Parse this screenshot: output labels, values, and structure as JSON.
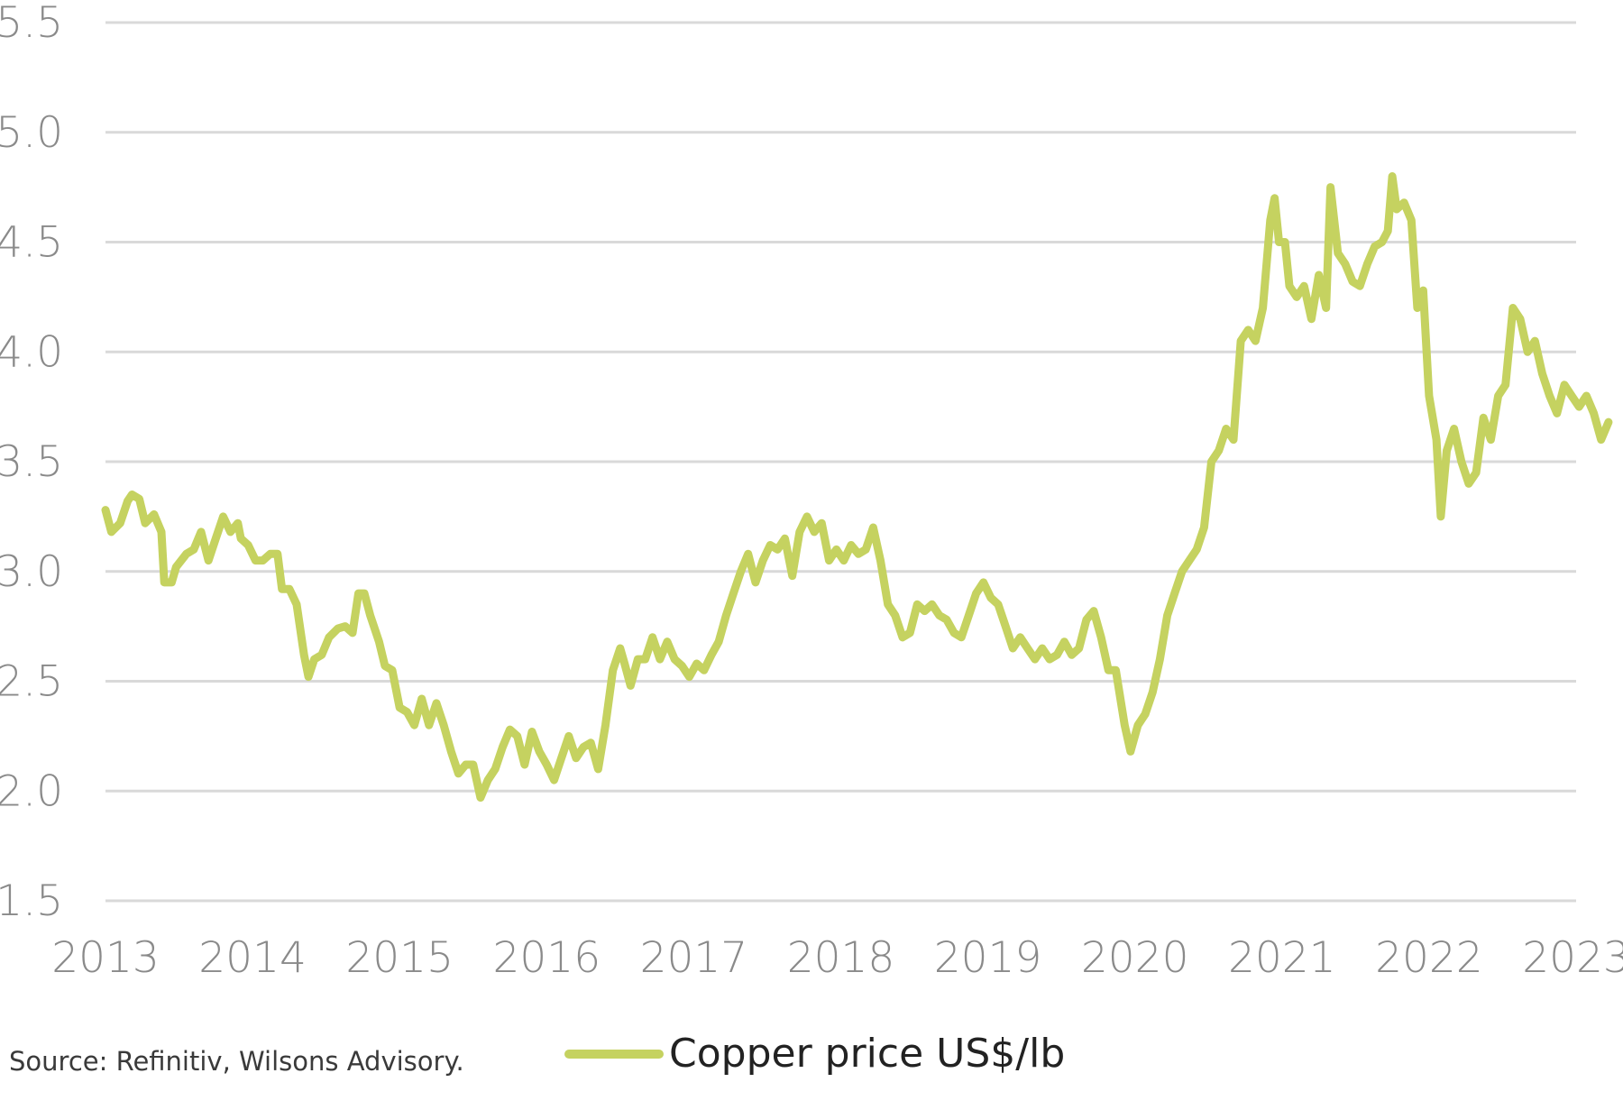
{
  "chart_data": {
    "type": "line",
    "title": "",
    "xlabel": "",
    "ylabel": "",
    "ylim": [
      1.5,
      5.5
    ],
    "xlim": [
      2013,
      2023
    ],
    "y_ticks": [
      "1.5",
      "2.0",
      "2.5",
      "3.0",
      "3.5",
      "4.0",
      "4.5",
      "5.0",
      "5.5"
    ],
    "x_ticks": [
      "2013",
      "2014",
      "2015",
      "2016",
      "2017",
      "2018",
      "2019",
      "2020",
      "2021",
      "2022",
      "2023"
    ],
    "grid": "horizontal",
    "legend_position": "bottom",
    "series": [
      {
        "name": "Copper price US$/lb",
        "color": "#c5d260",
        "points": [
          [
            2013.0,
            3.28
          ],
          [
            2013.04,
            3.18
          ],
          [
            2013.1,
            3.22
          ],
          [
            2013.15,
            3.32
          ],
          [
            2013.18,
            3.35
          ],
          [
            2013.23,
            3.33
          ],
          [
            2013.27,
            3.22
          ],
          [
            2013.33,
            3.26
          ],
          [
            2013.38,
            3.18
          ],
          [
            2013.4,
            2.95
          ],
          [
            2013.45,
            2.95
          ],
          [
            2013.48,
            3.02
          ],
          [
            2013.55,
            3.08
          ],
          [
            2013.6,
            3.1
          ],
          [
            2013.65,
            3.18
          ],
          [
            2013.7,
            3.05
          ],
          [
            2013.75,
            3.15
          ],
          [
            2013.8,
            3.25
          ],
          [
            2013.85,
            3.18
          ],
          [
            2013.9,
            3.22
          ],
          [
            2013.92,
            3.15
          ],
          [
            2013.97,
            3.12
          ],
          [
            2014.02,
            3.05
          ],
          [
            2014.07,
            3.05
          ],
          [
            2014.12,
            3.08
          ],
          [
            2014.17,
            3.08
          ],
          [
            2014.2,
            2.92
          ],
          [
            2014.25,
            2.92
          ],
          [
            2014.3,
            2.85
          ],
          [
            2014.35,
            2.62
          ],
          [
            2014.38,
            2.52
          ],
          [
            2014.42,
            2.6
          ],
          [
            2014.47,
            2.62
          ],
          [
            2014.52,
            2.7
          ],
          [
            2014.58,
            2.74
          ],
          [
            2014.63,
            2.75
          ],
          [
            2014.68,
            2.72
          ],
          [
            2014.72,
            2.9
          ],
          [
            2014.76,
            2.9
          ],
          [
            2014.8,
            2.8
          ],
          [
            2014.86,
            2.68
          ],
          [
            2014.9,
            2.57
          ],
          [
            2014.95,
            2.55
          ],
          [
            2015.0,
            2.38
          ],
          [
            2015.05,
            2.36
          ],
          [
            2015.1,
            2.3
          ],
          [
            2015.15,
            2.42
          ],
          [
            2015.2,
            2.3
          ],
          [
            2015.25,
            2.4
          ],
          [
            2015.3,
            2.3
          ],
          [
            2015.35,
            2.18
          ],
          [
            2015.4,
            2.08
          ],
          [
            2015.45,
            2.12
          ],
          [
            2015.5,
            2.12
          ],
          [
            2015.55,
            1.97
          ],
          [
            2015.6,
            2.05
          ],
          [
            2015.65,
            2.1
          ],
          [
            2015.7,
            2.2
          ],
          [
            2015.75,
            2.28
          ],
          [
            2015.8,
            2.25
          ],
          [
            2015.85,
            2.12
          ],
          [
            2015.9,
            2.27
          ],
          [
            2015.95,
            2.18
          ],
          [
            2016.0,
            2.12
          ],
          [
            2016.05,
            2.05
          ],
          [
            2016.1,
            2.15
          ],
          [
            2016.15,
            2.25
          ],
          [
            2016.2,
            2.15
          ],
          [
            2016.25,
            2.2
          ],
          [
            2016.3,
            2.22
          ],
          [
            2016.35,
            2.1
          ],
          [
            2016.4,
            2.3
          ],
          [
            2016.45,
            2.55
          ],
          [
            2016.5,
            2.65
          ],
          [
            2016.53,
            2.58
          ],
          [
            2016.57,
            2.48
          ],
          [
            2016.62,
            2.6
          ],
          [
            2016.67,
            2.6
          ],
          [
            2016.72,
            2.7
          ],
          [
            2016.77,
            2.6
          ],
          [
            2016.82,
            2.68
          ],
          [
            2016.87,
            2.6
          ],
          [
            2016.92,
            2.57
          ],
          [
            2016.97,
            2.52
          ],
          [
            2017.02,
            2.58
          ],
          [
            2017.07,
            2.55
          ],
          [
            2017.12,
            2.62
          ],
          [
            2017.17,
            2.68
          ],
          [
            2017.22,
            2.8
          ],
          [
            2017.27,
            2.9
          ],
          [
            2017.32,
            3.0
          ],
          [
            2017.37,
            3.08
          ],
          [
            2017.42,
            2.95
          ],
          [
            2017.47,
            3.05
          ],
          [
            2017.52,
            3.12
          ],
          [
            2017.57,
            3.1
          ],
          [
            2017.62,
            3.15
          ],
          [
            2017.67,
            2.98
          ],
          [
            2017.72,
            3.18
          ],
          [
            2017.77,
            3.25
          ],
          [
            2017.82,
            3.18
          ],
          [
            2017.87,
            3.22
          ],
          [
            2017.92,
            3.05
          ],
          [
            2017.97,
            3.1
          ],
          [
            2018.02,
            3.05
          ],
          [
            2018.07,
            3.12
          ],
          [
            2018.12,
            3.08
          ],
          [
            2018.17,
            3.1
          ],
          [
            2018.22,
            3.2
          ],
          [
            2018.27,
            3.05
          ],
          [
            2018.32,
            2.85
          ],
          [
            2018.37,
            2.8
          ],
          [
            2018.42,
            2.7
          ],
          [
            2018.47,
            2.72
          ],
          [
            2018.52,
            2.85
          ],
          [
            2018.57,
            2.82
          ],
          [
            2018.62,
            2.85
          ],
          [
            2018.67,
            2.8
          ],
          [
            2018.72,
            2.78
          ],
          [
            2018.77,
            2.72
          ],
          [
            2018.82,
            2.7
          ],
          [
            2018.87,
            2.8
          ],
          [
            2018.92,
            2.9
          ],
          [
            2018.97,
            2.95
          ],
          [
            2019.02,
            2.88
          ],
          [
            2019.07,
            2.85
          ],
          [
            2019.12,
            2.75
          ],
          [
            2019.17,
            2.65
          ],
          [
            2019.22,
            2.7
          ],
          [
            2019.27,
            2.65
          ],
          [
            2019.32,
            2.6
          ],
          [
            2019.37,
            2.65
          ],
          [
            2019.42,
            2.6
          ],
          [
            2019.47,
            2.62
          ],
          [
            2019.52,
            2.68
          ],
          [
            2019.57,
            2.62
          ],
          [
            2019.62,
            2.65
          ],
          [
            2019.67,
            2.78
          ],
          [
            2019.72,
            2.82
          ],
          [
            2019.77,
            2.7
          ],
          [
            2019.82,
            2.55
          ],
          [
            2019.87,
            2.55
          ],
          [
            2019.93,
            2.3
          ],
          [
            2019.97,
            2.18
          ],
          [
            2020.02,
            2.3
          ],
          [
            2020.07,
            2.35
          ],
          [
            2020.12,
            2.45
          ],
          [
            2020.17,
            2.6
          ],
          [
            2020.22,
            2.8
          ],
          [
            2020.27,
            2.9
          ],
          [
            2020.32,
            3.0
          ],
          [
            2020.37,
            3.05
          ],
          [
            2020.42,
            3.1
          ],
          [
            2020.47,
            3.2
          ],
          [
            2020.52,
            3.5
          ],
          [
            2020.57,
            3.55
          ],
          [
            2020.62,
            3.65
          ],
          [
            2020.67,
            3.6
          ],
          [
            2020.72,
            4.05
          ],
          [
            2020.77,
            4.1
          ],
          [
            2020.82,
            4.05
          ],
          [
            2020.87,
            4.2
          ],
          [
            2020.92,
            4.6
          ],
          [
            2020.95,
            4.7
          ],
          [
            2020.98,
            4.5
          ],
          [
            2021.02,
            4.5
          ],
          [
            2021.05,
            4.3
          ],
          [
            2021.1,
            4.25
          ],
          [
            2021.15,
            4.3
          ],
          [
            2021.2,
            4.15
          ],
          [
            2021.25,
            4.35
          ],
          [
            2021.3,
            4.2
          ],
          [
            2021.33,
            4.75
          ],
          [
            2021.38,
            4.45
          ],
          [
            2021.43,
            4.4
          ],
          [
            2021.48,
            4.32
          ],
          [
            2021.53,
            4.3
          ],
          [
            2021.58,
            4.4
          ],
          [
            2021.63,
            4.48
          ],
          [
            2021.68,
            4.5
          ],
          [
            2021.72,
            4.55
          ],
          [
            2021.75,
            4.8
          ],
          [
            2021.78,
            4.65
          ],
          [
            2021.83,
            4.68
          ],
          [
            2021.88,
            4.6
          ],
          [
            2021.92,
            4.2
          ],
          [
            2021.96,
            4.28
          ],
          [
            2022.0,
            3.8
          ],
          [
            2022.05,
            3.6
          ],
          [
            2022.08,
            3.25
          ],
          [
            2022.12,
            3.55
          ],
          [
            2022.17,
            3.65
          ],
          [
            2022.22,
            3.5
          ],
          [
            2022.27,
            3.4
          ],
          [
            2022.32,
            3.45
          ],
          [
            2022.37,
            3.7
          ],
          [
            2022.42,
            3.6
          ],
          [
            2022.47,
            3.8
          ],
          [
            2022.52,
            3.85
          ],
          [
            2022.57,
            4.2
          ],
          [
            2022.62,
            4.15
          ],
          [
            2022.67,
            4.0
          ],
          [
            2022.72,
            4.05
          ],
          [
            2022.77,
            3.9
          ],
          [
            2022.82,
            3.8
          ],
          [
            2022.87,
            3.72
          ],
          [
            2022.92,
            3.85
          ],
          [
            2022.97,
            3.8
          ],
          [
            2023.02,
            3.75
          ],
          [
            2023.07,
            3.8
          ],
          [
            2023.12,
            3.72
          ],
          [
            2023.17,
            3.6
          ],
          [
            2023.22,
            3.68
          ]
        ]
      }
    ]
  },
  "footer": {
    "source": "Source: Refinitiv, Wilsons Advisory."
  }
}
